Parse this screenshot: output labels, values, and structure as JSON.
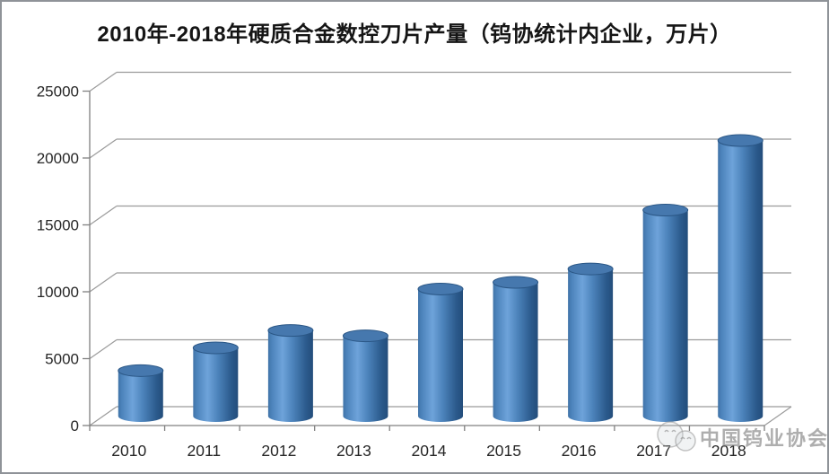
{
  "window": {
    "background": "#ffffff",
    "border_color": "#8f9398"
  },
  "watermark": {
    "text": "中国钨业协会",
    "logo": "wechat-official-account-bubbles-logo"
  },
  "chart_data": {
    "type": "bar",
    "subtype": "3d-cylinder",
    "title": "2010年-2018年硬质合金数控刀片产量（钨协统计内企业，万片）",
    "categories": [
      "2010",
      "2011",
      "2012",
      "2013",
      "2014",
      "2015",
      "2016",
      "2017",
      "2018"
    ],
    "values": [
      3400,
      5100,
      6400,
      6000,
      9500,
      10000,
      11000,
      15400,
      20600
    ],
    "series_name": "硬质合金数控刀片产量",
    "xlabel": "",
    "ylabel": "",
    "ylim": [
      0,
      25000
    ],
    "ytick_interval": 5000,
    "yticks": [
      0,
      5000,
      10000,
      15000,
      20000,
      25000
    ],
    "grid": true,
    "legend": "none",
    "colors": {
      "bar_edge_left": "#4073a8",
      "bar_highlight": "#6ea3da",
      "bar_mid": "#4c83bb",
      "bar_shadow": "#2b5a8c",
      "bar_edge_right": "#234d7b",
      "bar_top": "#4678ae",
      "bar_top_rim": "#2a5685",
      "gridline": "#9b9b9b",
      "axis": "#808080",
      "title_color": "#151515",
      "tick_label_color": "#262626"
    }
  }
}
